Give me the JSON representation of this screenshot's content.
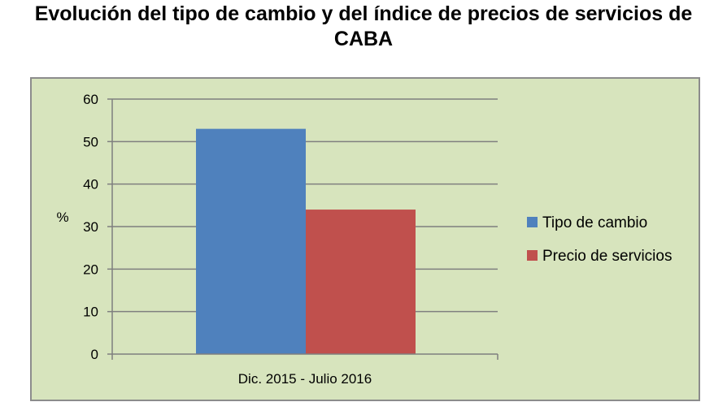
{
  "chart_data": {
    "type": "bar",
    "title_lines": [
      "Evolución del tipo de cambio y del índice de precios de servicios de",
      "CABA"
    ],
    "ylabel": "%",
    "xlabel": "",
    "categories": [
      "Dic. 2015 - Julio 2016"
    ],
    "series": [
      {
        "name": "Tipo de cambio",
        "values": [
          53
        ],
        "color": "#4f81bd"
      },
      {
        "name": "Precio de servicios",
        "values": [
          34
        ],
        "color": "#c0504d"
      }
    ],
    "ylim": [
      0,
      60
    ],
    "yticks": [
      0,
      10,
      20,
      30,
      40,
      50,
      60
    ],
    "grid": true,
    "legend_position": "right",
    "plot_background": "#d7e4bd",
    "gridline_color": "#7f7f7f"
  }
}
